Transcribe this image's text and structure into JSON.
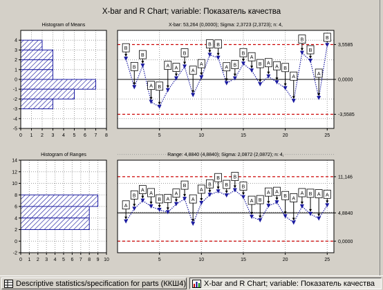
{
  "window": {
    "title": "X-bar and R Chart; variable:  Показатель качества"
  },
  "taskbar": {
    "items": [
      {
        "label": "Descriptive statistics/specification for parts (ККШ4)"
      },
      {
        "label": "X-bar and R Chart; variable:  Показатель качества"
      }
    ]
  },
  "chart_data": [
    {
      "type": "bar",
      "orientation": "horizontal",
      "title": "Histogram of Means",
      "categories": [
        3.5,
        2.5,
        1.5,
        0.5,
        -0.5,
        -1.5,
        -2.5
      ],
      "values": [
        2,
        3,
        3,
        3,
        7,
        5,
        3
      ],
      "xticks": [
        "0",
        "1",
        "2",
        "3",
        "4",
        "5",
        "6",
        "7",
        "8"
      ],
      "yticks": [
        "4",
        "3",
        "2",
        "1",
        "0",
        "-1",
        "-2",
        "-3",
        "-4",
        "-5"
      ],
      "xlim": [
        0,
        8
      ],
      "ylim": [
        -5,
        5
      ],
      "fill": "hatched"
    },
    {
      "type": "line",
      "title": "X-bar: 53,264 (0,0000); Sigma: 2,3723 (2,3723); n: 4,",
      "x": [
        1,
        2,
        3,
        4,
        5,
        6,
        7,
        8,
        9,
        10,
        11,
        12,
        13,
        14,
        15,
        16,
        17,
        18,
        19,
        20,
        21,
        22,
        23,
        24,
        25
      ],
      "values": [
        2.1,
        -0.8,
        1.4,
        -2.3,
        -2.8,
        -1.1,
        0.1,
        1.3,
        -1.6,
        0.2,
        2.5,
        2.2,
        -0.4,
        0.1,
        1.6,
        0.9,
        -0.5,
        0.3,
        -0.3,
        -0.9,
        -2.2,
        2.7,
        1.9,
        -1.9,
        3.5
      ],
      "ucl": 3.5585,
      "center": 0.0,
      "lcl": -3.5585,
      "ucl_label": "3,5585",
      "center_label": "0,0000",
      "lcl_label": "-3,5585",
      "xticks": [
        "5",
        "10",
        "15",
        "20",
        "25"
      ],
      "yticks": [
        "-4",
        "-2",
        "0",
        "2",
        "4"
      ],
      "xlim": [
        0,
        25.8
      ],
      "ylim": [
        -5,
        5
      ],
      "marker_label": "A",
      "marker_label_alt": "B"
    },
    {
      "type": "bar",
      "orientation": "horizontal",
      "title": "Histogram of Ranges",
      "categories": [
        7,
        5,
        3
      ],
      "values": [
        9,
        8,
        8
      ],
      "xticks": [
        "0",
        "1",
        "2",
        "3",
        "4",
        "5",
        "6",
        "7",
        "8",
        "9",
        "10"
      ],
      "yticks": [
        "14",
        "12",
        "10",
        "8",
        "6",
        "4",
        "2",
        "0",
        "-2"
      ],
      "xlim": [
        0,
        10
      ],
      "ylim": [
        -2,
        14
      ],
      "fill": "hatched"
    },
    {
      "type": "line",
      "title": "Range: 4,8840 (4,8840); Sigma: 2,0872 (2,0872); n: 4,",
      "x": [
        1,
        2,
        3,
        4,
        5,
        6,
        7,
        8,
        9,
        10,
        11,
        12,
        13,
        14,
        15,
        16,
        17,
        18,
        19,
        20,
        21,
        22,
        23,
        24,
        25
      ],
      "values": [
        3.4,
        5.6,
        7.0,
        6.0,
        5.4,
        5.0,
        6.4,
        7.3,
        3.0,
        6.6,
        8.0,
        8.6,
        7.9,
        8.8,
        7.6,
        4.2,
        3.6,
        6.1,
        6.7,
        4.3,
        3.2,
        6.0,
        4.7,
        3.9,
        6.2
      ],
      "ucl": 11.146,
      "center": 4.884,
      "lcl": 0.0,
      "ucl_label": "11,146",
      "center_label": "4,8840",
      "lcl_label": "0,0000",
      "xticks": [
        "5",
        "10",
        "15",
        "20",
        "25"
      ],
      "yticks": [
        "0",
        "5",
        "10",
        "15"
      ],
      "xlim": [
        0,
        25.8
      ],
      "ylim": [
        -2,
        14
      ],
      "marker_label": "A",
      "marker_label_alt": "B"
    }
  ]
}
